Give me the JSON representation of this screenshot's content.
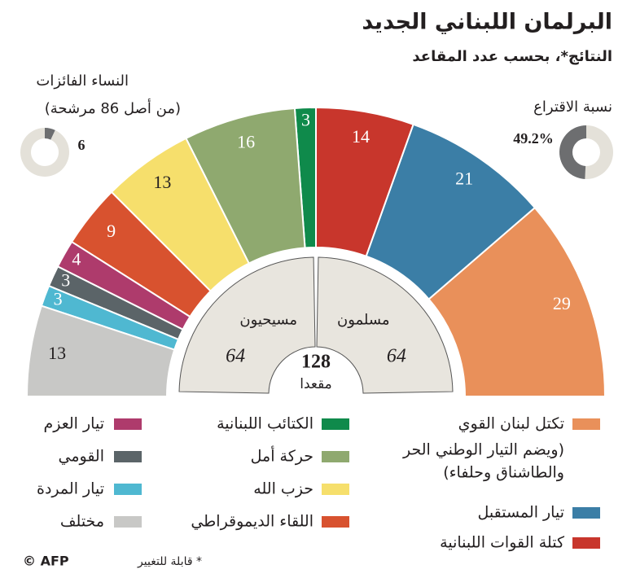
{
  "chart_data": {
    "type": "pie",
    "title": "البرلمان اللبناني الجديد",
    "subtitle": "النتائج*، بحسب عدد المقاعد",
    "categories": [
      "تكتل لبنان القوي",
      "تيار المستقبل",
      "كتلة القوات اللبنانية",
      "الكتائب اللبنانية",
      "حركة أمل",
      "حزب الله",
      "اللقاء الديموقراطي",
      "تيار العزم",
      "القومي",
      "تيار المردة",
      "مختلف"
    ],
    "values": [
      29,
      21,
      14,
      3,
      16,
      13,
      9,
      4,
      3,
      3,
      13
    ],
    "colors": [
      "#e9905a",
      "#3b7ea6",
      "#c8362c",
      "#0f8a4b",
      "#8fa96f",
      "#f6df6c",
      "#d8522f",
      "#ae3b6c",
      "#5b6468",
      "#4fb8d1",
      "#c8c8c6"
    ],
    "notes": [
      "(ويضم التيار الوطني الحر",
      "والطاشناق وحلفاء)"
    ],
    "groups": [
      {
        "name": "مسيحيون",
        "value": 64
      },
      {
        "name": "مسلمون",
        "value": 64
      }
    ],
    "total": 128,
    "total_label": "مقعدا",
    "women": {
      "title": "النساء الفائزات",
      "subtitle": "(من أصل 86 مرشحة)",
      "value": 6,
      "total": 86
    },
    "turnout": {
      "title": "نسبة الاقتراع",
      "value": 49.2,
      "value_label": "49.2%"
    },
    "footnote": "* قابلة للتغيير",
    "credit": "© AFP"
  }
}
